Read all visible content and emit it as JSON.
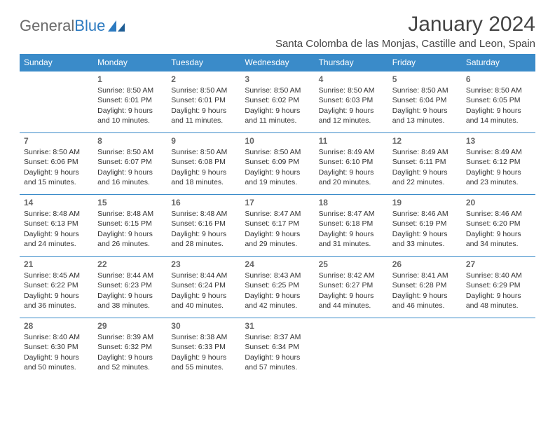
{
  "brand": {
    "part1": "General",
    "part2": "Blue"
  },
  "title": "January 2024",
  "location": "Santa Colomba de las Monjas, Castille and Leon, Spain",
  "colors": {
    "header_bg": "#3a8bc9",
    "header_text": "#ffffff",
    "border": "#3a8bc9",
    "daynum": "#666666",
    "body_text": "#333333",
    "logo_gray": "#6a6a6a",
    "logo_blue": "#2c7ac0",
    "page_bg": "#ffffff"
  },
  "day_headers": [
    "Sunday",
    "Monday",
    "Tuesday",
    "Wednesday",
    "Thursday",
    "Friday",
    "Saturday"
  ],
  "weeks": [
    [
      {
        "num": "",
        "lines": []
      },
      {
        "num": "1",
        "lines": [
          "Sunrise: 8:50 AM",
          "Sunset: 6:01 PM",
          "Daylight: 9 hours",
          "and 10 minutes."
        ]
      },
      {
        "num": "2",
        "lines": [
          "Sunrise: 8:50 AM",
          "Sunset: 6:01 PM",
          "Daylight: 9 hours",
          "and 11 minutes."
        ]
      },
      {
        "num": "3",
        "lines": [
          "Sunrise: 8:50 AM",
          "Sunset: 6:02 PM",
          "Daylight: 9 hours",
          "and 11 minutes."
        ]
      },
      {
        "num": "4",
        "lines": [
          "Sunrise: 8:50 AM",
          "Sunset: 6:03 PM",
          "Daylight: 9 hours",
          "and 12 minutes."
        ]
      },
      {
        "num": "5",
        "lines": [
          "Sunrise: 8:50 AM",
          "Sunset: 6:04 PM",
          "Daylight: 9 hours",
          "and 13 minutes."
        ]
      },
      {
        "num": "6",
        "lines": [
          "Sunrise: 8:50 AM",
          "Sunset: 6:05 PM",
          "Daylight: 9 hours",
          "and 14 minutes."
        ]
      }
    ],
    [
      {
        "num": "7",
        "lines": [
          "Sunrise: 8:50 AM",
          "Sunset: 6:06 PM",
          "Daylight: 9 hours",
          "and 15 minutes."
        ]
      },
      {
        "num": "8",
        "lines": [
          "Sunrise: 8:50 AM",
          "Sunset: 6:07 PM",
          "Daylight: 9 hours",
          "and 16 minutes."
        ]
      },
      {
        "num": "9",
        "lines": [
          "Sunrise: 8:50 AM",
          "Sunset: 6:08 PM",
          "Daylight: 9 hours",
          "and 18 minutes."
        ]
      },
      {
        "num": "10",
        "lines": [
          "Sunrise: 8:50 AM",
          "Sunset: 6:09 PM",
          "Daylight: 9 hours",
          "and 19 minutes."
        ]
      },
      {
        "num": "11",
        "lines": [
          "Sunrise: 8:49 AM",
          "Sunset: 6:10 PM",
          "Daylight: 9 hours",
          "and 20 minutes."
        ]
      },
      {
        "num": "12",
        "lines": [
          "Sunrise: 8:49 AM",
          "Sunset: 6:11 PM",
          "Daylight: 9 hours",
          "and 22 minutes."
        ]
      },
      {
        "num": "13",
        "lines": [
          "Sunrise: 8:49 AM",
          "Sunset: 6:12 PM",
          "Daylight: 9 hours",
          "and 23 minutes."
        ]
      }
    ],
    [
      {
        "num": "14",
        "lines": [
          "Sunrise: 8:48 AM",
          "Sunset: 6:13 PM",
          "Daylight: 9 hours",
          "and 24 minutes."
        ]
      },
      {
        "num": "15",
        "lines": [
          "Sunrise: 8:48 AM",
          "Sunset: 6:15 PM",
          "Daylight: 9 hours",
          "and 26 minutes."
        ]
      },
      {
        "num": "16",
        "lines": [
          "Sunrise: 8:48 AM",
          "Sunset: 6:16 PM",
          "Daylight: 9 hours",
          "and 28 minutes."
        ]
      },
      {
        "num": "17",
        "lines": [
          "Sunrise: 8:47 AM",
          "Sunset: 6:17 PM",
          "Daylight: 9 hours",
          "and 29 minutes."
        ]
      },
      {
        "num": "18",
        "lines": [
          "Sunrise: 8:47 AM",
          "Sunset: 6:18 PM",
          "Daylight: 9 hours",
          "and 31 minutes."
        ]
      },
      {
        "num": "19",
        "lines": [
          "Sunrise: 8:46 AM",
          "Sunset: 6:19 PM",
          "Daylight: 9 hours",
          "and 33 minutes."
        ]
      },
      {
        "num": "20",
        "lines": [
          "Sunrise: 8:46 AM",
          "Sunset: 6:20 PM",
          "Daylight: 9 hours",
          "and 34 minutes."
        ]
      }
    ],
    [
      {
        "num": "21",
        "lines": [
          "Sunrise: 8:45 AM",
          "Sunset: 6:22 PM",
          "Daylight: 9 hours",
          "and 36 minutes."
        ]
      },
      {
        "num": "22",
        "lines": [
          "Sunrise: 8:44 AM",
          "Sunset: 6:23 PM",
          "Daylight: 9 hours",
          "and 38 minutes."
        ]
      },
      {
        "num": "23",
        "lines": [
          "Sunrise: 8:44 AM",
          "Sunset: 6:24 PM",
          "Daylight: 9 hours",
          "and 40 minutes."
        ]
      },
      {
        "num": "24",
        "lines": [
          "Sunrise: 8:43 AM",
          "Sunset: 6:25 PM",
          "Daylight: 9 hours",
          "and 42 minutes."
        ]
      },
      {
        "num": "25",
        "lines": [
          "Sunrise: 8:42 AM",
          "Sunset: 6:27 PM",
          "Daylight: 9 hours",
          "and 44 minutes."
        ]
      },
      {
        "num": "26",
        "lines": [
          "Sunrise: 8:41 AM",
          "Sunset: 6:28 PM",
          "Daylight: 9 hours",
          "and 46 minutes."
        ]
      },
      {
        "num": "27",
        "lines": [
          "Sunrise: 8:40 AM",
          "Sunset: 6:29 PM",
          "Daylight: 9 hours",
          "and 48 minutes."
        ]
      }
    ],
    [
      {
        "num": "28",
        "lines": [
          "Sunrise: 8:40 AM",
          "Sunset: 6:30 PM",
          "Daylight: 9 hours",
          "and 50 minutes."
        ]
      },
      {
        "num": "29",
        "lines": [
          "Sunrise: 8:39 AM",
          "Sunset: 6:32 PM",
          "Daylight: 9 hours",
          "and 52 minutes."
        ]
      },
      {
        "num": "30",
        "lines": [
          "Sunrise: 8:38 AM",
          "Sunset: 6:33 PM",
          "Daylight: 9 hours",
          "and 55 minutes."
        ]
      },
      {
        "num": "31",
        "lines": [
          "Sunrise: 8:37 AM",
          "Sunset: 6:34 PM",
          "Daylight: 9 hours",
          "and 57 minutes."
        ]
      },
      {
        "num": "",
        "lines": []
      },
      {
        "num": "",
        "lines": []
      },
      {
        "num": "",
        "lines": []
      }
    ]
  ]
}
